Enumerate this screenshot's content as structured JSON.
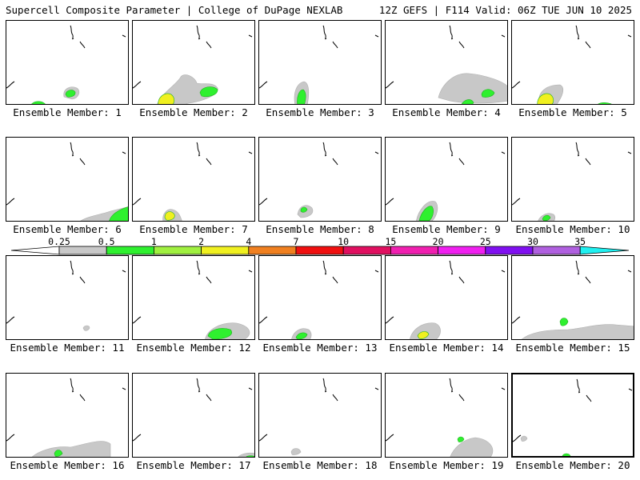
{
  "header": {
    "left_title": "Supercell Composite Parameter | College of DuPage NEXLAB",
    "right_title": "12Z GEFS | F114 Valid: 06Z TUE JUN 10 2025"
  },
  "colors": {
    "gray": "#c8c8c8",
    "green": "#2ff02f",
    "lightgreen": "#a0f040",
    "yellow": "#f0f020",
    "orange": "#f08020",
    "red": "#f01010",
    "crimson": "#e01060",
    "magenta": "#f020b0",
    "fuchsia": "#f020f0",
    "purple": "#8010f0",
    "lavender": "#b060e0",
    "cyan": "#20f0f0"
  },
  "colorbar": {
    "labels": [
      "0.25",
      "0.5",
      "1",
      "2",
      "4",
      "7",
      "10",
      "15",
      "20",
      "25",
      "30",
      "35"
    ],
    "bins": [
      "#ffffff",
      "#c8c8c8",
      "#2ff02f",
      "#a0f040",
      "#f0f020",
      "#f08020",
      "#f01010",
      "#e01060",
      "#f020b0",
      "#f020f0",
      "#8010f0",
      "#b060e0",
      "#20f0f0"
    ]
  },
  "panels": [
    {
      "label": "Ensemble Member: 1",
      "selected": false,
      "blobs": [
        {
          "shape": "a",
          "lvl": 1
        },
        {
          "shape": "b",
          "lvl": 2
        },
        {
          "shape": "m",
          "lvl": 2
        }
      ]
    },
    {
      "label": "Ensemble Member: 2",
      "selected": false,
      "blobs": [
        {
          "shape": "d",
          "lvl": 1
        },
        {
          "shape": "e",
          "lvl": 3
        },
        {
          "shape": "f",
          "lvl": 2
        }
      ]
    },
    {
      "label": "Ensemble Member: 3",
      "selected": false,
      "blobs": [
        {
          "shape": "g",
          "lvl": 1
        },
        {
          "shape": "h",
          "lvl": 2
        }
      ]
    },
    {
      "label": "Ensemble Member: 4",
      "selected": false,
      "blobs": [
        {
          "shape": "i",
          "lvl": 1
        },
        {
          "shape": "j",
          "lvl": 2
        },
        {
          "shape": "k",
          "lvl": 2
        }
      ]
    },
    {
      "label": "Ensemble Member: 5",
      "selected": false,
      "blobs": [
        {
          "shape": "l",
          "lvl": 1
        },
        {
          "shape": "e",
          "lvl": 3
        },
        {
          "shape": "c",
          "lvl": 2
        }
      ]
    },
    {
      "label": "Ensemble Member: 6",
      "selected": false,
      "blobs": [
        {
          "shape": "n",
          "lvl": 1
        },
        {
          "shape": "o",
          "lvl": 2
        }
      ]
    },
    {
      "label": "Ensemble Member: 7",
      "selected": false,
      "blobs": [
        {
          "shape": "p",
          "lvl": 1
        },
        {
          "shape": "q",
          "lvl": 3
        }
      ]
    },
    {
      "label": "Ensemble Member: 8",
      "selected": false,
      "blobs": [
        {
          "shape": "r",
          "lvl": 1
        },
        {
          "shape": "s",
          "lvl": 2
        }
      ]
    },
    {
      "label": "Ensemble Member: 9",
      "selected": false,
      "blobs": [
        {
          "shape": "t",
          "lvl": 1
        },
        {
          "shape": "u",
          "lvl": 2
        }
      ]
    },
    {
      "label": "Ensemble Member: 10",
      "selected": false,
      "blobs": [
        {
          "shape": "v",
          "lvl": 1
        },
        {
          "shape": "w",
          "lvl": 2
        }
      ]
    },
    {
      "label": "Ensemble Member: 11",
      "selected": false,
      "blobs": [
        {
          "shape": "x",
          "lvl": 1
        }
      ]
    },
    {
      "label": "Ensemble Member: 12",
      "selected": false,
      "blobs": [
        {
          "shape": "y",
          "lvl": 1
        },
        {
          "shape": "z",
          "lvl": 2
        }
      ]
    },
    {
      "label": "Ensemble Member: 13",
      "selected": false,
      "blobs": [
        {
          "shape": "aa",
          "lvl": 1
        },
        {
          "shape": "ab",
          "lvl": 2
        }
      ]
    },
    {
      "label": "Ensemble Member: 14",
      "selected": false,
      "blobs": [
        {
          "shape": "ac",
          "lvl": 1
        },
        {
          "shape": "ad",
          "lvl": 3
        }
      ]
    },
    {
      "label": "Ensemble Member: 15",
      "selected": false,
      "blobs": [
        {
          "shape": "ae",
          "lvl": 1
        },
        {
          "shape": "af",
          "lvl": 2
        }
      ]
    },
    {
      "label": "Ensemble Member: 16",
      "selected": false,
      "blobs": [
        {
          "shape": "ag",
          "lvl": 1
        },
        {
          "shape": "ah",
          "lvl": 2
        }
      ]
    },
    {
      "label": "Ensemble Member: 17",
      "selected": false,
      "blobs": [
        {
          "shape": "ai",
          "lvl": 1
        },
        {
          "shape": "aj",
          "lvl": 2
        }
      ]
    },
    {
      "label": "Ensemble Member: 18",
      "selected": false,
      "blobs": [
        {
          "shape": "ak",
          "lvl": 1
        }
      ]
    },
    {
      "label": "Ensemble Member: 19",
      "selected": false,
      "blobs": [
        {
          "shape": "al",
          "lvl": 1
        },
        {
          "shape": "am",
          "lvl": 2
        }
      ]
    },
    {
      "label": "Ensemble Member: 20",
      "selected": true,
      "blobs": [
        {
          "shape": "an",
          "lvl": 1
        },
        {
          "shape": "ao",
          "lvl": 2
        }
      ]
    }
  ]
}
